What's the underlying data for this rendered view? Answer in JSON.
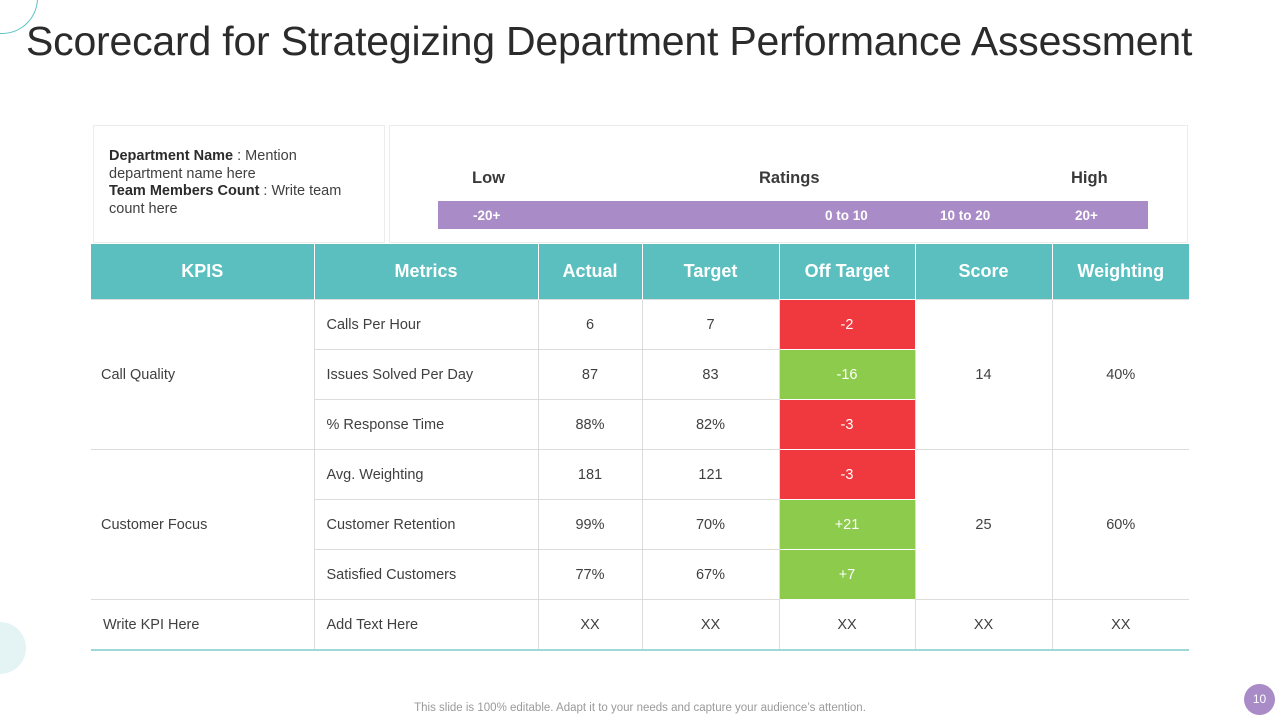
{
  "title": "Scorecard for Strategizing Department Performance Assessment",
  "info": {
    "dept_label": "Department Name",
    "dept_text": " : Mention department name here",
    "team_label": "Team Members Count",
    "team_text": " : Write team count here"
  },
  "ratings": {
    "low": "Low",
    "title": "Ratings",
    "high": "High",
    "segments": [
      "-20+",
      "0 to 10",
      "10 to 20",
      "20+"
    ],
    "bar_color": "#a98bc7"
  },
  "table": {
    "headers": [
      "KPIS",
      "Metrics",
      "Actual",
      "Target",
      "Off Target",
      "Score",
      "Weighting"
    ],
    "groups": [
      {
        "kpi": "Call Quality",
        "rows": [
          {
            "metric": "Calls Per Hour",
            "actual": "6",
            "target": "7",
            "off": "-2",
            "status": "red"
          },
          {
            "metric": "Issues Solved Per Day",
            "actual": "87",
            "target": "83",
            "off": "-16",
            "status": "green"
          },
          {
            "metric": "% Response Time",
            "actual": "88%",
            "target": "82%",
            "off": "-3",
            "status": "red"
          }
        ],
        "score": "14",
        "weighting": "40%"
      },
      {
        "kpi": "Customer Focus",
        "rows": [
          {
            "metric": "Avg. Weighting",
            "actual": "181",
            "target": "121",
            "off": "-3",
            "status": "red"
          },
          {
            "metric": "Customer Retention",
            "actual": "99%",
            "target": "70%",
            "off": "+21",
            "status": "green"
          },
          {
            "metric": "Satisfied Customers",
            "actual": "77%",
            "target": "67%",
            "off": "+7",
            "status": "green"
          }
        ],
        "score": "25",
        "weighting": "60%"
      }
    ],
    "last_row": {
      "kpi": "Write KPI Here",
      "metric": "Add Text Here",
      "actual": "XX",
      "target": "XX",
      "off": "XX",
      "score": "XX",
      "weighting": "XX"
    },
    "colors": {
      "header": "#5bbfbf",
      "red": "#f0383f",
      "green": "#8ccb4c"
    }
  },
  "footer": "This slide is 100% editable. Adapt it to your needs and capture your audience’s attention.",
  "page_number": "10"
}
